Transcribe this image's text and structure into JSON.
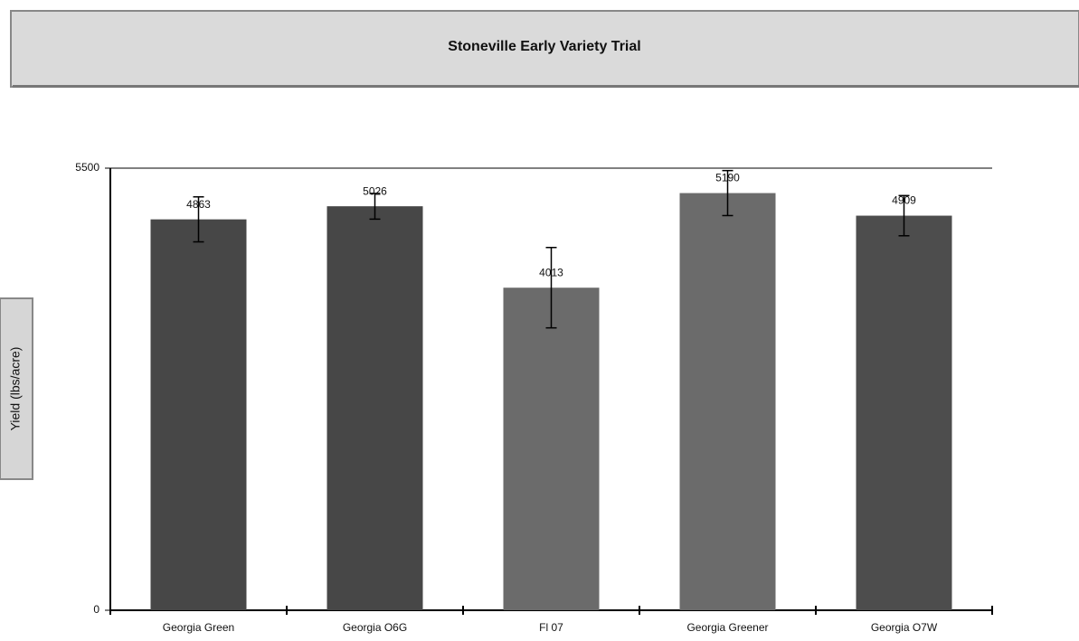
{
  "chart_data": {
    "type": "bar",
    "title": "Stoneville Early Variety Trial",
    "y_label": "Yield (lbs/acre)",
    "categories": [
      "Georgia Green",
      "Georgia O6G",
      "Fl 07",
      "Georgia Greener",
      "Georgia O7W"
    ],
    "values": [
      4863,
      5026,
      4013,
      5190,
      4909
    ],
    "errors": [
      280,
      160,
      500,
      280,
      250
    ],
    "colors": [
      "#474747",
      "#474747",
      "#6b6b6b",
      "#6b6b6b",
      "#4d4d4d"
    ],
    "ylim": [
      0,
      5500
    ],
    "yticks": [
      0,
      5500
    ],
    "grid": true
  }
}
